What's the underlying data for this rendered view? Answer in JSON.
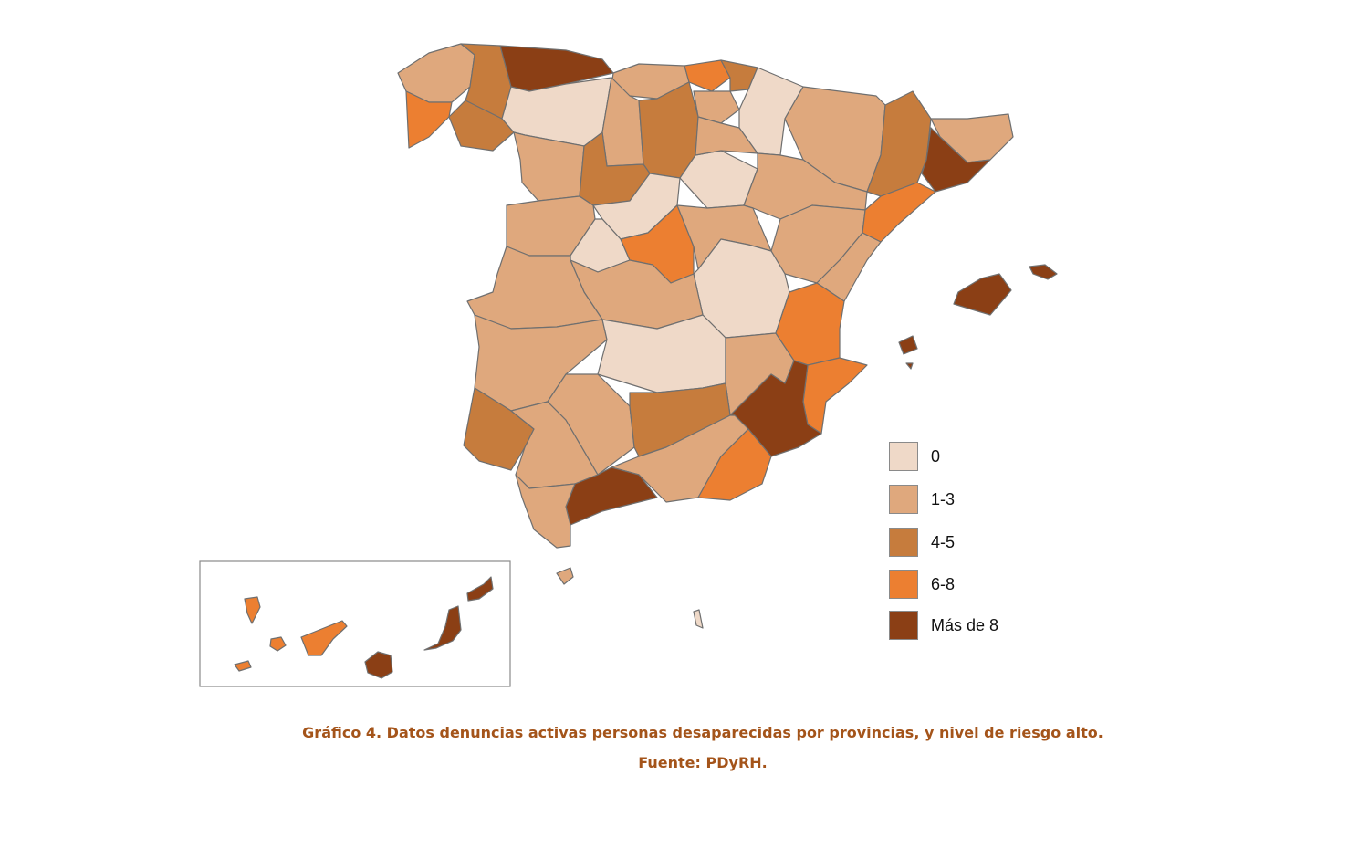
{
  "colors": {
    "c0": "#efd9c8",
    "c1": "#dfa87d",
    "c4": "#c67c3d",
    "c6": "#ec7f31",
    "c8": "#8b3f15"
  },
  "legend": [
    {
      "label": "0",
      "color_key": "c0"
    },
    {
      "label": "1-3",
      "color_key": "c1"
    },
    {
      "label": "4-5",
      "color_key": "c4"
    },
    {
      "label": "6-8",
      "color_key": "c6"
    },
    {
      "label": "Más de 8",
      "color_key": "c8"
    }
  ],
  "caption": {
    "line1": "Gráfico 4. Datos denuncias activas personas desaparecidas por provincias, y nivel de riesgo alto.",
    "line2": "Fuente: PDyRH."
  }
}
